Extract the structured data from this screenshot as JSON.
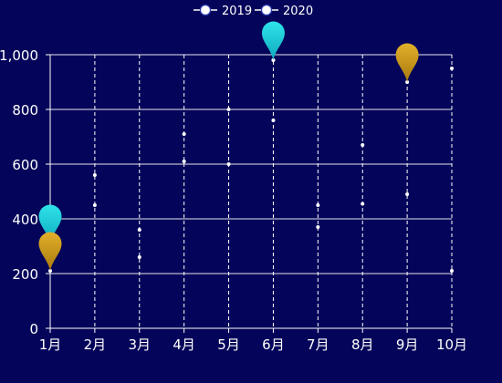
{
  "chart_data": {
    "type": "line",
    "categories": [
      "1月",
      "2月",
      "3月",
      "4月",
      "5月",
      "6月",
      "7月",
      "8月",
      "9月",
      "10月"
    ],
    "series": [
      {
        "name": "2019",
        "values": [
          310,
          560,
          360,
          710,
          800,
          980,
          450,
          670,
          490,
          950
        ]
      },
      {
        "name": "2020",
        "values": [
          210,
          450,
          260,
          610,
          600,
          760,
          370,
          455,
          900,
          210
        ]
      }
    ],
    "markers": [
      {
        "series": "2019",
        "category": "1月",
        "value": 310,
        "type": "min"
      },
      {
        "series": "2019",
        "category": "6月",
        "value": 980,
        "type": "max"
      },
      {
        "series": "2020",
        "category": "1月",
        "value": 210,
        "type": "min"
      },
      {
        "series": "2020",
        "category": "9月",
        "value": 900,
        "type": "max"
      }
    ],
    "ylim": [
      0,
      1000
    ],
    "yticks": [
      "0",
      "200",
      "400",
      "600",
      "800",
      "1,000"
    ],
    "grid": {
      "horizontal": true,
      "vertical_dashed": true
    },
    "legend": "top-center",
    "lines_visible": false
  },
  "colors": {
    "background": "#04045a",
    "axis": "#ffffff",
    "grid": "#ffffff",
    "point": "#ffffff",
    "marker_2019": "#1ac9d6",
    "marker_2020": "#c9961a"
  }
}
